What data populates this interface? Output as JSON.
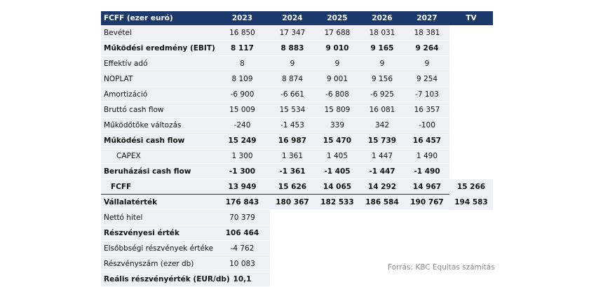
{
  "table": {
    "header": {
      "label": "FCFF (ezer euró)",
      "years": [
        "2023",
        "2024",
        "2025",
        "2026",
        "2027",
        "TV"
      ]
    },
    "rows": [
      {
        "label": "Bevétel",
        "values": [
          "16 850",
          "17 347",
          "17 688",
          "18 031",
          "18 381",
          ""
        ],
        "bold": false
      },
      {
        "label": "Működési eredmény (EBIT)",
        "values": [
          "8 117",
          "8 883",
          "9 010",
          "9 165",
          "9 264",
          ""
        ],
        "bold": true
      },
      {
        "label": "Effektív adó",
        "values": [
          "8",
          "9",
          "9",
          "9",
          "9",
          ""
        ],
        "bold": false
      },
      {
        "label": "NOPLAT",
        "values": [
          "8 109",
          "8 874",
          "9 001",
          "9 156",
          "9 254",
          ""
        ],
        "bold": false
      },
      {
        "label": "Amortizáció",
        "values": [
          "-6 900",
          "-6 661",
          "-6 808",
          "-6 925",
          "-7 103",
          ""
        ],
        "bold": false
      },
      {
        "label": "Bruttó cash flow",
        "values": [
          "15 009",
          "15 534",
          "15 809",
          "16 081",
          "16 357",
          ""
        ],
        "bold": false
      },
      {
        "label": "Működőtőke változás",
        "values": [
          "-240",
          "-1 453",
          "339",
          "342",
          "-100",
          ""
        ],
        "bold": false
      },
      {
        "label": "Működési cash flow",
        "values": [
          "15 249",
          "16 987",
          "15 470",
          "15 739",
          "16 457",
          ""
        ],
        "bold": true
      },
      {
        "label": "CAPEX",
        "values": [
          "1 300",
          "1 361",
          "1 405",
          "1 447",
          "1 490",
          ""
        ],
        "bold": false,
        "indent": "indent"
      },
      {
        "label": "Beruházási cash flow",
        "values": [
          "-1 300",
          "-1 361",
          "-1 405",
          "-1 447",
          "-1 490",
          ""
        ],
        "bold": true
      },
      {
        "label": "FCFF",
        "values": [
          "13 949",
          "15 626",
          "14 065",
          "14 292",
          "14 967",
          "15 266"
        ],
        "bold": true,
        "indent": "indent-s",
        "underline": true
      },
      {
        "label": "Vállalatérték",
        "values": [
          "176 843",
          "180 367",
          "182 533",
          "186 584",
          "190 767",
          "194 583"
        ],
        "bold": true
      },
      {
        "label": "Nettó hitel",
        "values": [
          "70 379",
          "",
          "",
          "",
          "",
          ""
        ],
        "bold": false
      },
      {
        "label": "Részvényesi érték",
        "values": [
          "106 464",
          "",
          "",
          "",
          "",
          ""
        ],
        "bold": true
      },
      {
        "label": "Elsőbbségi részvények értéke",
        "values": [
          "-4 762",
          "",
          "",
          "",
          "",
          ""
        ],
        "bold": false
      },
      {
        "label": "Részvényszám (ezer db)",
        "values": [
          "10 083",
          "",
          "",
          "",
          "",
          ""
        ],
        "bold": false
      },
      {
        "label": "Reális részvényérték (EUR/db)",
        "values": [
          "10,1",
          "",
          "",
          "",
          "",
          ""
        ],
        "bold": true
      }
    ]
  },
  "source": "Forrás: KBC Equitas számítás",
  "colors": {
    "header_bg": "#1b3a6b",
    "header_text": "#ffffff",
    "cell_bg": "#eef0f6",
    "source_text": "#8a8a8a"
  }
}
